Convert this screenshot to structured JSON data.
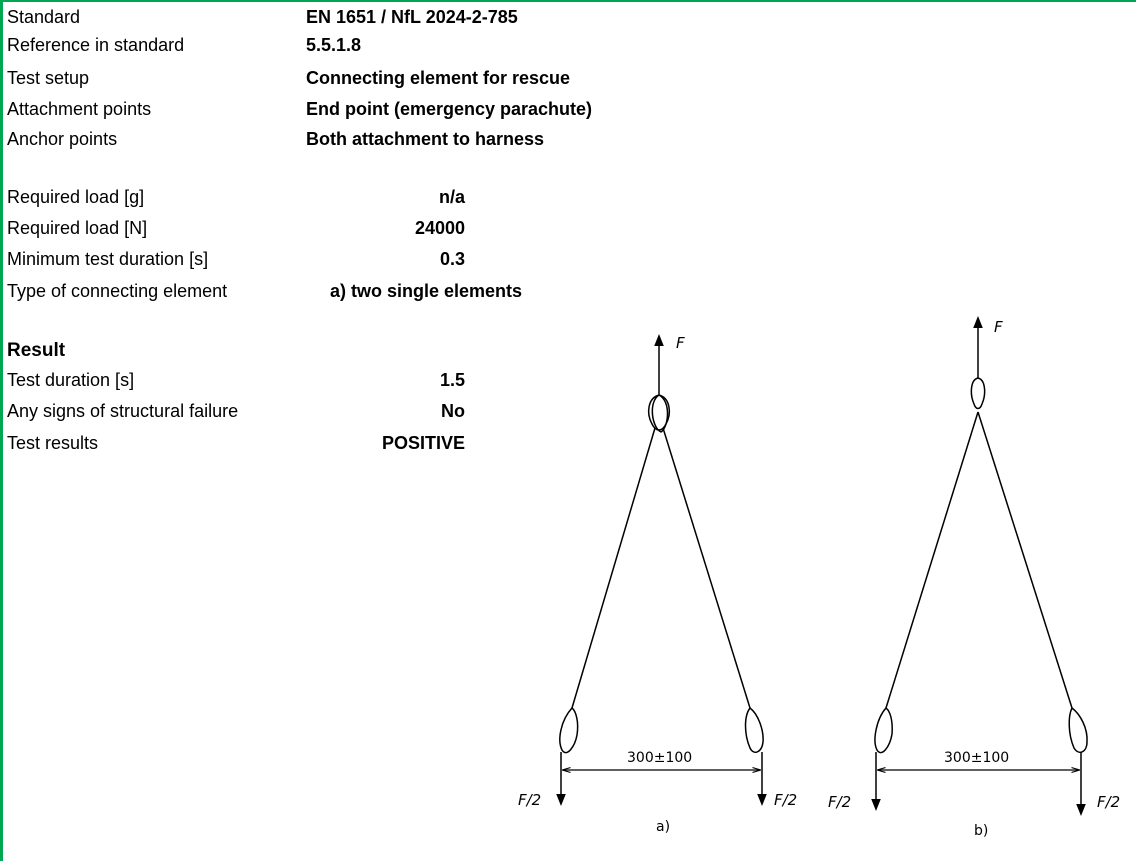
{
  "info": {
    "standard_label": "Standard",
    "standard_value": "EN 1651 / NfL 2024-2-785",
    "reference_label": "Reference in standard",
    "reference_value": "5.5.1.8",
    "setup_label": "Test setup",
    "setup_value": "Connecting element for rescue",
    "attachment_label": "Attachment points",
    "attachment_value": "End point (emergency parachute)",
    "anchor_label": "Anchor points",
    "anchor_value": "Both attachment to harness"
  },
  "requirements": {
    "load_g_label": "Required load [g]",
    "load_g_value": "n/a",
    "load_n_label": "Required load [N]",
    "load_n_value": "24000",
    "duration_label": "Minimum test duration [s]",
    "duration_value": "0.3",
    "type_label": "Type of connecting element",
    "type_value": "a) two single elements"
  },
  "result": {
    "heading": "Result",
    "duration_label": "Test duration [s]",
    "duration_value": "1.5",
    "failure_label": "Any signs of structural failure",
    "failure_value": "No",
    "results_label": "Test results",
    "results_value": "POSITIVE"
  },
  "figure": {
    "force_top": "F",
    "force_half": "F/2",
    "dimension": "300±100",
    "caption_a": "a)",
    "caption_b": "b)"
  }
}
